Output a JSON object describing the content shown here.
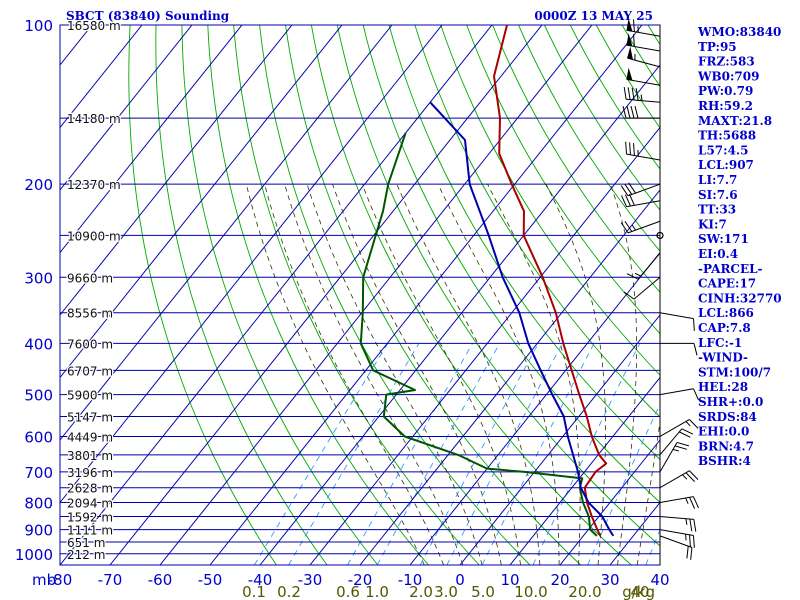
{
  "header": {
    "title": "SBCT (83840) Sounding",
    "datetime": "0000Z 13 MAY 25"
  },
  "colors": {
    "frame": "#0000aa",
    "isotherm_isobar": "#0000aa",
    "dry_adiabat": "#00aa00",
    "moist_adiabat": "#333300",
    "mixing_ratio": "#3399ff",
    "temperature": "#aa0000",
    "dewpoint": "#005500",
    "parcel": "#0000aa",
    "indices_text": "#0000cc",
    "pressure_labels": "#0000cc",
    "mixing_labels": "#555500"
  },
  "chart_data": {
    "type": "line",
    "x_axis": {
      "unit_label": "mb",
      "ticks": [
        -80,
        -70,
        -60,
        -50,
        -40,
        -30,
        -20,
        -10,
        0,
        10,
        20,
        30,
        40
      ],
      "range": [
        -80,
        40
      ]
    },
    "y_axis": {
      "ticks": [
        100,
        200,
        300,
        400,
        500,
        600,
        700,
        800,
        900,
        1000
      ],
      "range": [
        100,
        1050
      ],
      "scale": "log-pressure"
    },
    "height_labels": [
      {
        "p": 100,
        "label": "16580 m"
      },
      {
        "p": 150,
        "label": "14180 m"
      },
      {
        "p": 200,
        "label": "12370 m"
      },
      {
        "p": 250,
        "label": "10900 m"
      },
      {
        "p": 300,
        "label": "9660 m"
      },
      {
        "p": 350,
        "label": "8556 m"
      },
      {
        "p": 400,
        "label": "7600 m"
      },
      {
        "p": 450,
        "label": "6707 m"
      },
      {
        "p": 500,
        "label": "5900 m"
      },
      {
        "p": 550,
        "label": "5147 m"
      },
      {
        "p": 600,
        "label": "4449 m"
      },
      {
        "p": 650,
        "label": "3801 m"
      },
      {
        "p": 700,
        "label": "3196 m"
      },
      {
        "p": 750,
        "label": "2628 m"
      },
      {
        "p": 800,
        "label": "2094 m"
      },
      {
        "p": 850,
        "label": "1592 m"
      },
      {
        "p": 900,
        "label": "1111 m"
      },
      {
        "p": 950,
        "label": "651 m"
      },
      {
        "p": 1000,
        "label": "212 m"
      }
    ],
    "mixing_ratio_labels": [
      "0.1",
      "0.2",
      "0.6",
      "1.0",
      "2.0",
      "3.0",
      "5.0",
      "10.0",
      "20.0",
      "40",
      "g/kg"
    ],
    "series": [
      {
        "name": "Temperature",
        "points": [
          {
            "p": 925,
            "t": 23.4
          },
          {
            "p": 900,
            "t": 21.8
          },
          {
            "p": 850,
            "t": 18.6
          },
          {
            "p": 800,
            "t": 15.4
          },
          {
            "p": 750,
            "t": 12.6
          },
          {
            "p": 700,
            "t": 12.2
          },
          {
            "p": 675,
            "t": 13.0
          },
          {
            "p": 650,
            "t": 10.2
          },
          {
            "p": 600,
            "t": 5.8
          },
          {
            "p": 550,
            "t": 1.6
          },
          {
            "p": 500,
            "t": -3.4
          },
          {
            "p": 450,
            "t": -8.8
          },
          {
            "p": 400,
            "t": -14.8
          },
          {
            "p": 350,
            "t": -21.2
          },
          {
            "p": 300,
            "t": -29.5
          },
          {
            "p": 250,
            "t": -40.0
          },
          {
            "p": 225,
            "t": -43.8
          },
          {
            "p": 200,
            "t": -50.6
          },
          {
            "p": 175,
            "t": -58.0
          },
          {
            "p": 150,
            "t": -63.5
          },
          {
            "p": 125,
            "t": -71.4
          },
          {
            "p": 100,
            "t": -77.0
          }
        ]
      },
      {
        "name": "Dewpoint",
        "points": [
          {
            "p": 925,
            "t": 22.7
          },
          {
            "p": 900,
            "t": 20.4
          },
          {
            "p": 850,
            "t": 18.0
          },
          {
            "p": 800,
            "t": 14.6
          },
          {
            "p": 750,
            "t": 11.6
          },
          {
            "p": 720,
            "t": 10.6
          },
          {
            "p": 700,
            "t": -2.0
          },
          {
            "p": 690,
            "t": -10.0
          },
          {
            "p": 650,
            "t": -18.0
          },
          {
            "p": 600,
            "t": -31.6
          },
          {
            "p": 550,
            "t": -39.0
          },
          {
            "p": 500,
            "t": -42.0
          },
          {
            "p": 490,
            "t": -37.0
          },
          {
            "p": 450,
            "t": -48.5
          },
          {
            "p": 400,
            "t": -55.3
          },
          {
            "p": 350,
            "t": -59.8
          },
          {
            "p": 300,
            "t": -65.4
          },
          {
            "p": 250,
            "t": -69.6
          },
          {
            "p": 225,
            "t": -72.0
          },
          {
            "p": 200,
            "t": -75.3
          },
          {
            "p": 160,
            "t": -80.0
          }
        ]
      },
      {
        "name": "Parcel",
        "points": [
          {
            "p": 925,
            "t": 26.0
          },
          {
            "p": 900,
            "t": 24.2
          },
          {
            "p": 850,
            "t": 20.7
          },
          {
            "p": 800,
            "t": 15.7
          },
          {
            "p": 750,
            "t": 11.8
          },
          {
            "p": 700,
            "t": 8.7
          },
          {
            "p": 650,
            "t": 5.0
          },
          {
            "p": 600,
            "t": 1.0
          },
          {
            "p": 550,
            "t": -3.0
          },
          {
            "p": 500,
            "t": -8.8
          },
          {
            "p": 450,
            "t": -15.0
          },
          {
            "p": 400,
            "t": -21.8
          },
          {
            "p": 350,
            "t": -28.5
          },
          {
            "p": 300,
            "t": -37.5
          },
          {
            "p": 250,
            "t": -47.0
          },
          {
            "p": 200,
            "t": -59.0
          },
          {
            "p": 165,
            "t": -67.0
          },
          {
            "p": 140,
            "t": -80.0
          }
        ]
      }
    ],
    "wind_barbs": [
      {
        "p": 105,
        "dir": 280,
        "spd": 65
      },
      {
        "p": 112,
        "dir": 280,
        "spd": 60
      },
      {
        "p": 120,
        "dir": 285,
        "spd": 55
      },
      {
        "p": 130,
        "dir": 280,
        "spd": 50
      },
      {
        "p": 140,
        "dir": 275,
        "spd": 45
      },
      {
        "p": 150,
        "dir": 270,
        "spd": 40
      },
      {
        "p": 180,
        "dir": 280,
        "spd": 35
      },
      {
        "p": 200,
        "dir": 250,
        "spd": 30
      },
      {
        "p": 215,
        "dir": 260,
        "spd": 30
      },
      {
        "p": 235,
        "dir": 250,
        "spd": 25
      },
      {
        "p": 250,
        "dir": 0,
        "spd": 0
      },
      {
        "p": 270,
        "dir": 220,
        "spd": 15
      },
      {
        "p": 300,
        "dir": 230,
        "spd": 10
      },
      {
        "p": 350,
        "dir": 100,
        "spd": 10
      },
      {
        "p": 400,
        "dir": 90,
        "spd": 10
      },
      {
        "p": 500,
        "dir": 80,
        "spd": 10
      },
      {
        "p": 600,
        "dir": 60,
        "spd": 15
      },
      {
        "p": 650,
        "dir": 40,
        "spd": 20
      },
      {
        "p": 700,
        "dir": 30,
        "spd": 25
      },
      {
        "p": 750,
        "dir": 60,
        "spd": 25
      },
      {
        "p": 800,
        "dir": 80,
        "spd": 25
      },
      {
        "p": 850,
        "dir": 95,
        "spd": 25
      },
      {
        "p": 900,
        "dir": 100,
        "spd": 25
      },
      {
        "p": 925,
        "dir": 110,
        "spd": 20
      }
    ]
  },
  "indices": [
    "WMO:83840",
    "TP:95",
    "FRZ:583",
    "WB0:709",
    "PW:0.79",
    "RH:59.2",
    "MAXT:21.8",
    "TH:5688",
    "L57:4.5",
    "LCL:907",
    "LI:7.7",
    "SI:7.6",
    "TT:33",
    "KI:7",
    "SW:171",
    "EI:0.4",
    "-PARCEL-",
    "CAPE:17",
    "CINH:32770",
    "LCL:866",
    "CAP:7.8",
    "LFC:-1",
    "-WIND-",
    "STM:100/7",
    "HEL:28",
    "SHR+:0.0",
    "SRDS:84",
    "EHI:0.0",
    "BRN:4.7",
    "BSHR:4"
  ]
}
